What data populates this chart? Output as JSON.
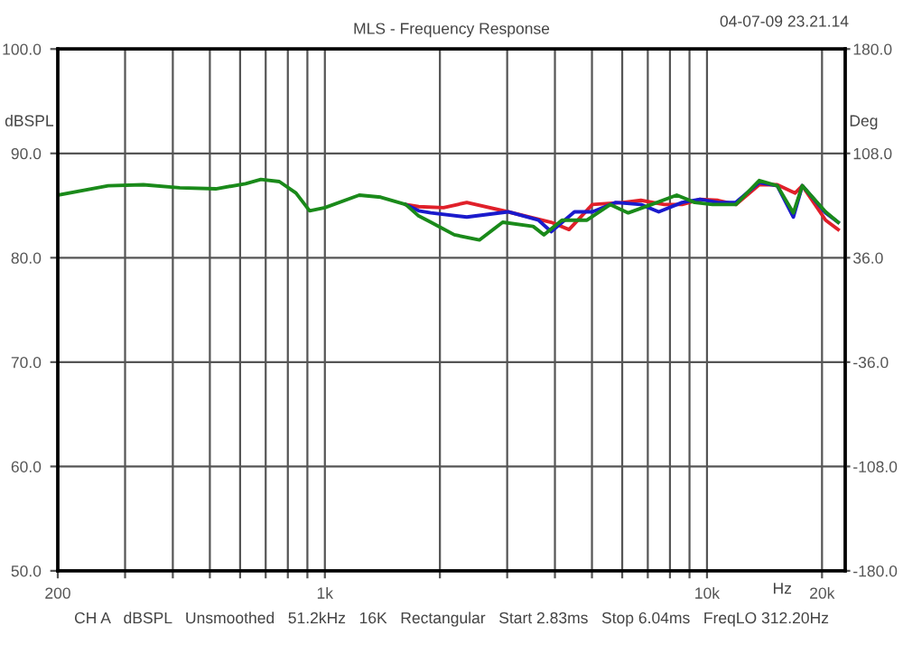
{
  "chart_data": {
    "type": "line",
    "title": "MLS - Frequency Response",
    "xlabel": "Hz",
    "ylabel": "dBSPL",
    "y2label": "Deg",
    "annotations": [
      "04-07-09 23.21.14",
      "CH A   dBSPL   Unsmoothed   51.2kHz   16K   Rectangular   Start 2.83ms   Stop 6.04ms   FreqLO 312.20Hz"
    ],
    "log": "x",
    "grid": true,
    "marker": "none",
    "line_style": "solid",
    "xlim": [
      200,
      23000
    ],
    "xticks": [
      {
        "value": 200,
        "label": "200"
      },
      {
        "value": 300,
        "label": null
      },
      {
        "value": 400,
        "label": null
      },
      {
        "value": 500,
        "label": null
      },
      {
        "value": 600,
        "label": null
      },
      {
        "value": 700,
        "label": null
      },
      {
        "value": 800,
        "label": null
      },
      {
        "value": 900,
        "label": null
      },
      {
        "value": 1000,
        "label": "1k"
      },
      {
        "value": 2000,
        "label": null
      },
      {
        "value": 3000,
        "label": null
      },
      {
        "value": 4000,
        "label": null
      },
      {
        "value": 5000,
        "label": null
      },
      {
        "value": 6000,
        "label": null
      },
      {
        "value": 7000,
        "label": null
      },
      {
        "value": 8000,
        "label": null
      },
      {
        "value": 9000,
        "label": null
      },
      {
        "value": 10000,
        "label": "10k"
      },
      {
        "value": 20000,
        "label": "20k"
      }
    ],
    "ylim": [
      50,
      100
    ],
    "yticks": [
      {
        "value": 50,
        "label": "50.0"
      },
      {
        "value": 60,
        "label": "60.0"
      },
      {
        "value": 70,
        "label": "70.0"
      },
      {
        "value": 80,
        "label": "80.0"
      },
      {
        "value": 90,
        "label": "90.0"
      },
      {
        "value": 100,
        "label": "100.0"
      }
    ],
    "y2lim": [
      -180,
      180
    ],
    "y2ticks": [
      {
        "value": -180,
        "label": "-180.0"
      },
      {
        "value": -108,
        "label": "-108.0"
      },
      {
        "value": -36,
        "label": "-36.0"
      },
      {
        "value": 36,
        "label": "36.0"
      },
      {
        "value": 108,
        "label": "108.0"
      },
      {
        "value": 180,
        "label": "180.0"
      }
    ],
    "series": [
      {
        "color": "#e0202a",
        "x": [
          1628,
          1760,
          2044,
          2352,
          3016,
          3910,
          4355,
          5012,
          6026,
          6712,
          7726,
          8608,
          9590,
          10680,
          11900,
          13700,
          15270,
          17010,
          17760,
          20440,
          22040
        ],
        "values": [
          85.1,
          84.9,
          84.8,
          85.3,
          84.4,
          83.4,
          82.7,
          85.1,
          85.3,
          85.5,
          85.1,
          85.1,
          85.6,
          85.5,
          85.1,
          87.0,
          87.0,
          86.2,
          86.9,
          83.6,
          82.7
        ]
      },
      {
        "color": "#1a1acc",
        "x": [
          1628,
          1760,
          1894,
          2352,
          3016,
          3624,
          3910,
          4499,
          5012,
          5770,
          6712,
          7478,
          8608,
          9590,
          10680,
          11900,
          13700,
          15270,
          16830,
          17760,
          20440,
          22040
        ],
        "values": [
          85.1,
          84.5,
          84.3,
          83.9,
          84.4,
          83.6,
          82.5,
          84.4,
          84.4,
          85.3,
          85.1,
          84.4,
          85.3,
          85.6,
          85.3,
          85.3,
          87.2,
          86.9,
          83.9,
          86.9,
          84.3,
          83.4
        ]
      },
      {
        "color": "#1a8a1a",
        "x": [
          200,
          271,
          335,
          417,
          518,
          620,
          680,
          760,
          840,
          912,
          1000,
          1230,
          1400,
          1628,
          1760,
          1894,
          2181,
          2537,
          2920,
          3509,
          3743,
          4172,
          4853,
          5585,
          6223,
          7161,
          8333,
          9284,
          10340,
          11900,
          13700,
          15270,
          16830,
          17760,
          20440,
          22040
        ],
        "values": [
          86.0,
          86.9,
          87.0,
          86.7,
          86.6,
          87.1,
          87.5,
          87.3,
          86.2,
          84.5,
          84.8,
          86.0,
          85.8,
          85.1,
          84.0,
          83.4,
          82.2,
          81.7,
          83.4,
          83.0,
          82.2,
          83.6,
          83.6,
          85.1,
          84.3,
          85.1,
          86.0,
          85.3,
          85.1,
          85.1,
          87.4,
          86.9,
          84.3,
          86.9,
          84.4,
          83.4
        ]
      }
    ]
  }
}
